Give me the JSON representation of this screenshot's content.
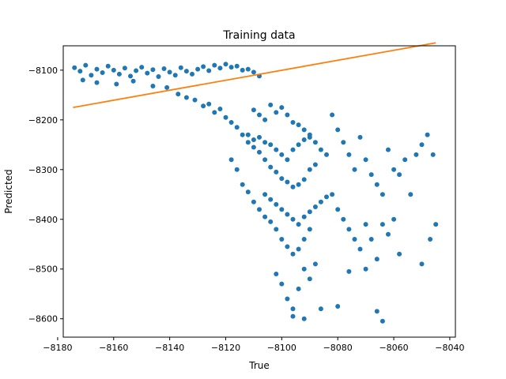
{
  "chart_data": {
    "type": "scatter",
    "title": "Training data",
    "xlabel": "True",
    "ylabel": "Predicted",
    "xlim": [
      -8178,
      -8038
    ],
    "ylim": [
      -8637,
      -8051
    ],
    "xticks": [
      -8180,
      -8160,
      -8140,
      -8120,
      -8100,
      -8080,
      -8060,
      -8040
    ],
    "yticks": [
      -8100,
      -8200,
      -8300,
      -8400,
      -8500,
      -8600
    ],
    "xtick_labels": [
      "−8180",
      "−8160",
      "−8140",
      "−8120",
      "−8100",
      "−8080",
      "−8060",
      "−8040"
    ],
    "ytick_labels": [
      "−8100",
      "−8200",
      "−8300",
      "−8400",
      "−8500",
      "−8600"
    ],
    "grid": false,
    "series": [
      {
        "kind": "scatter",
        "color": "#1f77b4",
        "points": [
          [
            -8174,
            -8095
          ],
          [
            -8172,
            -8102
          ],
          [
            -8170,
            -8090
          ],
          [
            -8168,
            -8110
          ],
          [
            -8166,
            -8098
          ],
          [
            -8164,
            -8105
          ],
          [
            -8162,
            -8092
          ],
          [
            -8160,
            -8100
          ],
          [
            -8158,
            -8108
          ],
          [
            -8156,
            -8096
          ],
          [
            -8154,
            -8112
          ],
          [
            -8152,
            -8101
          ],
          [
            -8150,
            -8094
          ],
          [
            -8148,
            -8106
          ],
          [
            -8146,
            -8099
          ],
          [
            -8144,
            -8113
          ],
          [
            -8142,
            -8097
          ],
          [
            -8140,
            -8104
          ],
          [
            -8138,
            -8110
          ],
          [
            -8136,
            -8095
          ],
          [
            -8134,
            -8102
          ],
          [
            -8132,
            -8108
          ],
          [
            -8130,
            -8098
          ],
          [
            -8128,
            -8093
          ],
          [
            -8126,
            -8101
          ],
          [
            -8124,
            -8090
          ],
          [
            -8122,
            -8096
          ],
          [
            -8120,
            -8088
          ],
          [
            -8118,
            -8094
          ],
          [
            -8116,
            -8092
          ],
          [
            -8114,
            -8100
          ],
          [
            -8112,
            -8098
          ],
          [
            -8110,
            -8104
          ],
          [
            -8108,
            -8112
          ],
          [
            -8171,
            -8120
          ],
          [
            -8166,
            -8125
          ],
          [
            -8159,
            -8128
          ],
          [
            -8153,
            -8122
          ],
          [
            -8146,
            -8132
          ],
          [
            -8141,
            -8135
          ],
          [
            -8137,
            -8148
          ],
          [
            -8134,
            -8155
          ],
          [
            -8131,
            -8160
          ],
          [
            -8128,
            -8172
          ],
          [
            -8126,
            -8168
          ],
          [
            -8124,
            -8185
          ],
          [
            -8122,
            -8178
          ],
          [
            -8120,
            -8195
          ],
          [
            -8118,
            -8205
          ],
          [
            -8116,
            -8215
          ],
          [
            -8114,
            -8230
          ],
          [
            -8112,
            -8245
          ],
          [
            -8110,
            -8255
          ],
          [
            -8108,
            -8265
          ],
          [
            -8106,
            -8280
          ],
          [
            -8104,
            -8295
          ],
          [
            -8102,
            -8305
          ],
          [
            -8100,
            -8318
          ],
          [
            -8098,
            -8325
          ],
          [
            -8096,
            -8335
          ],
          [
            -8094,
            -8330
          ],
          [
            -8092,
            -8320
          ],
          [
            -8090,
            -8300
          ],
          [
            -8088,
            -8290
          ],
          [
            -8118,
            -8280
          ],
          [
            -8116,
            -8300
          ],
          [
            -8114,
            -8330
          ],
          [
            -8112,
            -8345
          ],
          [
            -8110,
            -8365
          ],
          [
            -8108,
            -8380
          ],
          [
            -8106,
            -8395
          ],
          [
            -8104,
            -8405
          ],
          [
            -8102,
            -8420
          ],
          [
            -8100,
            -8440
          ],
          [
            -8098,
            -8455
          ],
          [
            -8096,
            -8470
          ],
          [
            -8094,
            -8460
          ],
          [
            -8092,
            -8440
          ],
          [
            -8090,
            -8420
          ],
          [
            -8112,
            -8230
          ],
          [
            -8110,
            -8240
          ],
          [
            -8108,
            -8235
          ],
          [
            -8106,
            -8245
          ],
          [
            -8104,
            -8250
          ],
          [
            -8102,
            -8260
          ],
          [
            -8100,
            -8270
          ],
          [
            -8098,
            -8280
          ],
          [
            -8096,
            -8260
          ],
          [
            -8094,
            -8250
          ],
          [
            -8092,
            -8240
          ],
          [
            -8090,
            -8235
          ],
          [
            -8088,
            -8245
          ],
          [
            -8086,
            -8260
          ],
          [
            -8084,
            -8270
          ],
          [
            -8110,
            -8180
          ],
          [
            -8108,
            -8190
          ],
          [
            -8106,
            -8200
          ],
          [
            -8104,
            -8170
          ],
          [
            -8102,
            -8185
          ],
          [
            -8100,
            -8175
          ],
          [
            -8098,
            -8190
          ],
          [
            -8096,
            -8205
          ],
          [
            -8094,
            -8210
          ],
          [
            -8092,
            -8220
          ],
          [
            -8090,
            -8230
          ],
          [
            -8106,
            -8350
          ],
          [
            -8104,
            -8360
          ],
          [
            -8102,
            -8370
          ],
          [
            -8100,
            -8380
          ],
          [
            -8098,
            -8390
          ],
          [
            -8096,
            -8400
          ],
          [
            -8094,
            -8410
          ],
          [
            -8092,
            -8395
          ],
          [
            -8090,
            -8385
          ],
          [
            -8088,
            -8375
          ],
          [
            -8086,
            -8365
          ],
          [
            -8084,
            -8355
          ],
          [
            -8082,
            -8190
          ],
          [
            -8080,
            -8220
          ],
          [
            -8078,
            -8245
          ],
          [
            -8076,
            -8270
          ],
          [
            -8074,
            -8300
          ],
          [
            -8072,
            -8235
          ],
          [
            -8070,
            -8280
          ],
          [
            -8068,
            -8310
          ],
          [
            -8066,
            -8330
          ],
          [
            -8064,
            -8350
          ],
          [
            -8062,
            -8260
          ],
          [
            -8060,
            -8300
          ],
          [
            -8058,
            -8310
          ],
          [
            -8056,
            -8280
          ],
          [
            -8054,
            -8350
          ],
          [
            -8052,
            -8270
          ],
          [
            -8050,
            -8250
          ],
          [
            -8048,
            -8230
          ],
          [
            -8046,
            -8270
          ],
          [
            -8082,
            -8350
          ],
          [
            -8080,
            -8380
          ],
          [
            -8078,
            -8400
          ],
          [
            -8076,
            -8420
          ],
          [
            -8074,
            -8440
          ],
          [
            -8072,
            -8460
          ],
          [
            -8070,
            -8410
          ],
          [
            -8068,
            -8440
          ],
          [
            -8066,
            -8480
          ],
          [
            -8064,
            -8410
          ],
          [
            -8062,
            -8430
          ],
          [
            -8060,
            -8400
          ],
          [
            -8058,
            -8470
          ],
          [
            -8050,
            -8490
          ],
          [
            -8047,
            -8440
          ],
          [
            -8045,
            -8410
          ],
          [
            -8088,
            -8490
          ],
          [
            -8090,
            -8520
          ],
          [
            -8092,
            -8500
          ],
          [
            -8094,
            -8540
          ],
          [
            -8096,
            -8580
          ],
          [
            -8098,
            -8560
          ],
          [
            -8100,
            -8530
          ],
          [
            -8102,
            -8510
          ],
          [
            -8092,
            -8600
          ],
          [
            -8096,
            -8595
          ],
          [
            -8086,
            -8580
          ],
          [
            -8080,
            -8575
          ],
          [
            -8066,
            -8585
          ],
          [
            -8064,
            -8605
          ],
          [
            -8076,
            -8505
          ],
          [
            -8070,
            -8500
          ]
        ]
      },
      {
        "kind": "line",
        "color": "#ff7f0e",
        "points": [
          [
            -8174.5,
            -8175
          ],
          [
            -8045,
            -8045
          ]
        ]
      }
    ]
  }
}
